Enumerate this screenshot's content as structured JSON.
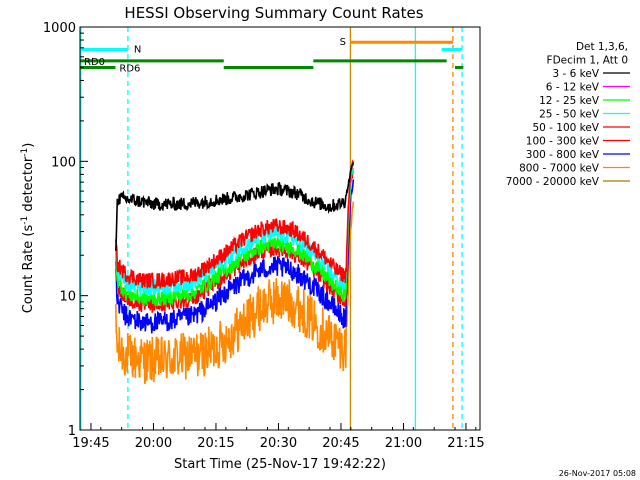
{
  "chart_data": {
    "type": "line",
    "title": "HESSI Observing Summary Count Rates",
    "xlabel": "Start Time (25-Nov-17 19:42:22)",
    "ylabel_main": "Count Rate (s",
    "ylabel_sup1": "-1",
    "ylabel_mid": " detector",
    "ylabel_sup2": "-1",
    "ylabel_end": ")",
    "yscale": "log",
    "ylim": [
      1,
      1000
    ],
    "xlim": [
      0,
      96
    ],
    "x_unit": "minutes after 19:42:22",
    "grid": false,
    "x_ticks": [
      {
        "x": 2.63,
        "label": "19:45"
      },
      {
        "x": 17.63,
        "label": "20:00"
      },
      {
        "x": 32.63,
        "label": "20:15"
      },
      {
        "x": 47.63,
        "label": "20:30"
      },
      {
        "x": 62.63,
        "label": "20:45"
      },
      {
        "x": 77.63,
        "label": "21:00"
      },
      {
        "x": 92.63,
        "label": "21:15"
      }
    ],
    "y_ticks": [
      {
        "y": 1,
        "label": "1"
      },
      {
        "y": 10,
        "label": "10"
      },
      {
        "y": 100,
        "label": "100"
      },
      {
        "y": 1000,
        "label": "1000"
      }
    ],
    "legend": {
      "placement": "right",
      "header": [
        "Det 1,3,6,",
        "FDecim 1, Att 0"
      ],
      "entries": [
        {
          "label": "3 - 6 keV",
          "color": "#000000"
        },
        {
          "label": "6 - 12 keV",
          "color": "#ff00ff"
        },
        {
          "label": "12 - 25 keV",
          "color": "#00ff00"
        },
        {
          "label": "25 - 50 keV",
          "color": "#00ffff"
        },
        {
          "label": "50 - 100 keV",
          "color": "#ff0000"
        },
        {
          "label": "100 - 300 keV",
          "color": "#ff0000"
        },
        {
          "label": "300 - 800 keV",
          "color": "#0000ff"
        },
        {
          "label": "800 - 7000 keV",
          "color": "#ff8800"
        },
        {
          "label": "7000 - 20000 keV",
          "color": "#aa7700"
        }
      ]
    },
    "series": [
      {
        "name": "3 - 6 keV",
        "color": "#000000",
        "x": [
          8.6,
          9,
          12,
          18,
          24,
          30,
          36,
          42,
          46,
          48,
          52,
          56,
          60,
          62,
          63.5,
          64.2,
          65.0,
          65.6
        ],
        "y": [
          23,
          53,
          52,
          48,
          48,
          50,
          53,
          58,
          62,
          62,
          58,
          50,
          46,
          48,
          50,
          62,
          85,
          100
        ],
        "noise": 0.05
      },
      {
        "name": "100 - 300 keV",
        "color": "#ff0000",
        "x": [
          8.6,
          9,
          11,
          15,
          19,
          23,
          27,
          31,
          35,
          39,
          43,
          47,
          51,
          55,
          59,
          62,
          63.8,
          64.4,
          65.0,
          65.6
        ],
        "y": [
          25,
          17,
          14.5,
          13,
          13,
          13.5,
          14,
          17,
          21,
          26,
          31,
          33,
          31,
          25,
          19,
          15,
          14,
          45,
          85,
          100
        ],
        "noise": 0.06
      },
      {
        "name": "25 - 50 keV",
        "color": "#00ffff",
        "x": [
          8.6,
          9,
          11,
          15,
          19,
          23,
          27,
          31,
          35,
          39,
          43,
          47,
          51,
          55,
          59,
          62,
          63.8,
          64.4,
          65.0,
          65.6
        ],
        "y": [
          22,
          15,
          12.5,
          11.5,
          11.5,
          12,
          12.5,
          15,
          18.5,
          23,
          27,
          29,
          27,
          22,
          16.5,
          13,
          12,
          40,
          80,
          95
        ],
        "noise": 0.06
      },
      {
        "name": "12 - 25 keV",
        "color": "#00ff00",
        "x": [
          8.6,
          9,
          11,
          15,
          19,
          23,
          27,
          31,
          35,
          39,
          43,
          47,
          51,
          55,
          59,
          62,
          63.8,
          64.4,
          65.0,
          65.6
        ],
        "y": [
          20,
          13,
          10.5,
          9.5,
          9.5,
          10,
          10.5,
          12.5,
          15.5,
          19.5,
          23,
          24.5,
          23,
          18.5,
          14,
          11,
          10,
          35,
          75,
          90
        ],
        "noise": 0.06
      },
      {
        "name": "50 - 100 keV",
        "color": "#ff0000",
        "x": [
          8.6,
          9,
          11,
          15,
          19,
          23,
          27,
          31,
          35,
          39,
          43,
          47,
          51,
          55,
          59,
          62,
          63.8,
          64.4,
          65.0,
          65.6
        ],
        "y": [
          18,
          12,
          9.5,
          8.5,
          8.5,
          9,
          9.5,
          11.5,
          14,
          17.5,
          21,
          22.5,
          21,
          17,
          12.5,
          10,
          9,
          30,
          70,
          85
        ],
        "noise": 0.06
      },
      {
        "name": "300 - 800 keV",
        "color": "#0000ff",
        "x": [
          8.6,
          9,
          11,
          15,
          19,
          23,
          27,
          31,
          35,
          39,
          43,
          47,
          51,
          55,
          59,
          62,
          63.8,
          64.4,
          65.0,
          65.6
        ],
        "y": [
          15,
          9,
          7,
          6.3,
          6.3,
          6.6,
          7,
          8.3,
          10.5,
          13,
          15.5,
          16.5,
          15.5,
          12.5,
          9.5,
          7.5,
          6.5,
          22,
          55,
          70
        ],
        "noise": 0.08
      },
      {
        "name": "800 - 7000 keV",
        "color": "#ff8800",
        "x": [
          8.6,
          9,
          12,
          16,
          20,
          24,
          28,
          32,
          36,
          40,
          44,
          48,
          52,
          56,
          60,
          63.8,
          64.4,
          65.0,
          65.6
        ],
        "y": [
          6,
          4,
          3.5,
          3.3,
          3.3,
          3.5,
          3.6,
          4,
          5,
          6.5,
          8.5,
          9.5,
          8.5,
          6.5,
          5,
          4,
          12,
          35,
          50
        ],
        "noise": 0.18
      }
    ],
    "flag_bars": [
      {
        "label": "N",
        "color": "#00ffff",
        "y": 680,
        "segments": [
          [
            0,
            11.5
          ],
          [
            86.8,
            91.6
          ]
        ]
      },
      {
        "label": "S",
        "color": "#ff8800",
        "y": 770,
        "segments": [
          [
            64.8,
            89.5
          ]
        ]
      },
      {
        "label": "RD0",
        "color": "#008800",
        "y": 560,
        "segments": [
          [
            0,
            34.5
          ],
          [
            56,
            88
          ]
        ]
      },
      {
        "label": "RD6",
        "color": "#008800",
        "y": 500,
        "segments": [
          [
            0,
            8.5
          ],
          [
            34.5,
            56
          ],
          [
            90,
            92
          ]
        ]
      }
    ],
    "vertical_markers": [
      {
        "x": 0.2,
        "color": "#00ffff",
        "style": "solid"
      },
      {
        "x": 11.5,
        "color": "#00ffff",
        "style": "dashed"
      },
      {
        "x": 64.9,
        "color": "#cc8800",
        "style": "solid"
      },
      {
        "x": 80.5,
        "color": "#00ffff",
        "style": "solid"
      },
      {
        "x": 89.5,
        "color": "#ff8800",
        "style": "dashed"
      },
      {
        "x": 91.7,
        "color": "#00ffff",
        "style": "dashed"
      }
    ],
    "footer_date": "26-Nov-2017 05:08"
  }
}
